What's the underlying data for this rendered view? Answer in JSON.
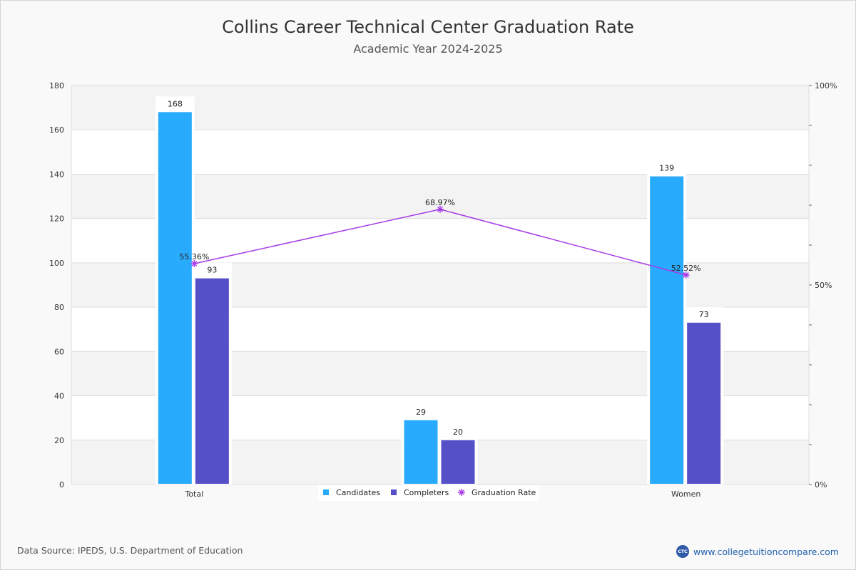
{
  "page": {
    "title": "Collins Career Technical Center Graduation Rate",
    "subtitle": "Academic Year 2024-2025",
    "source": "Data Source: IPEDS, U.S. Department of Education",
    "site": "www.collegetuitioncompare.com",
    "logo_text": "CTC"
  },
  "chart_data": {
    "type": "bar",
    "categories": [
      "Total",
      "",
      "Women"
    ],
    "series": [
      {
        "name": "Candidates",
        "type": "bar",
        "axis": "left",
        "color": "#29abfd",
        "values": [
          168,
          29,
          139
        ]
      },
      {
        "name": "Completers",
        "type": "bar",
        "axis": "left",
        "color": "#5550c8",
        "values": [
          93,
          20,
          73
        ]
      },
      {
        "name": "Graduation Rate",
        "type": "line",
        "axis": "right",
        "color": "#a53ae8",
        "values": [
          55.36,
          68.97,
          52.52
        ],
        "labels": [
          "55.36%",
          "68.97%",
          "52.52%"
        ]
      }
    ],
    "ylim": [
      0,
      180
    ],
    "yticks": [
      0,
      20,
      40,
      60,
      80,
      100,
      120,
      140,
      160,
      180
    ],
    "y2lim": [
      0,
      100
    ],
    "y2ticks": [
      "0%",
      "50%",
      "100%"
    ],
    "grid": true,
    "legend": "bottom-center"
  }
}
